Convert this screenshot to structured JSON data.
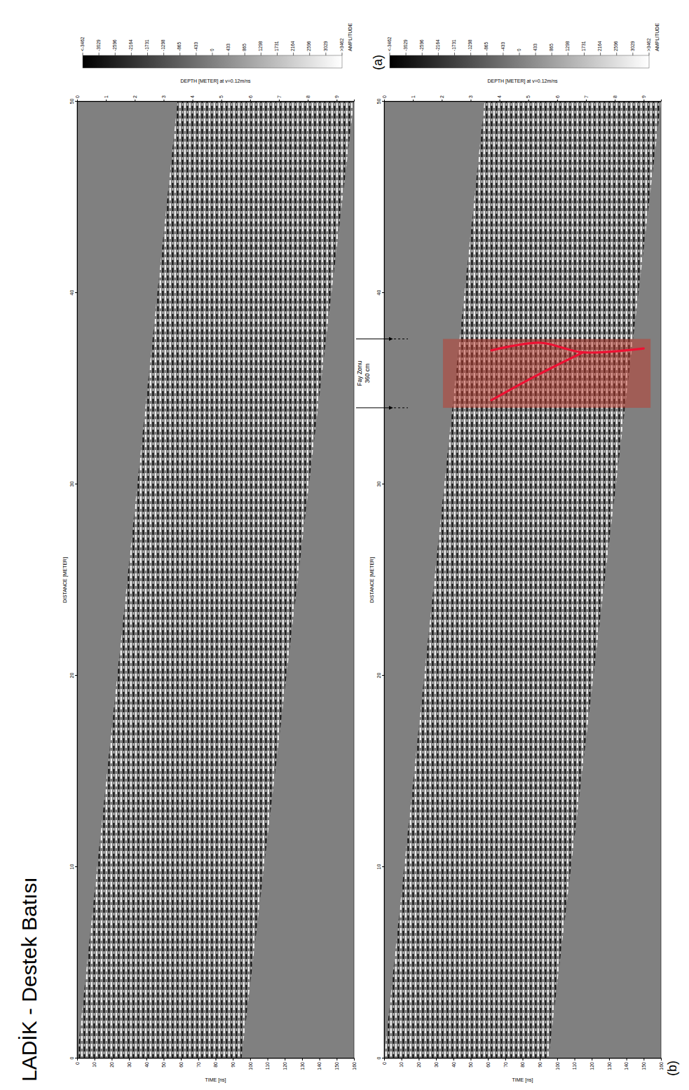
{
  "title": "LADİK - Destek Batısı",
  "chart_data": [
    {
      "type": "heatmap",
      "panel": "(a)",
      "xlabel": "DISTANCE [METER]",
      "ylabel": "TIME [ns]",
      "y2label": "DEPTH [METER] at v=0.12m/ns",
      "xlim": [
        0,
        50
      ],
      "xticks": [
        0,
        10,
        20,
        30,
        40,
        50
      ],
      "ylim": [
        0,
        160
      ],
      "yticks": [
        0,
        10,
        20,
        30,
        40,
        50,
        60,
        70,
        80,
        90,
        100,
        110,
        120,
        130,
        140,
        150,
        160
      ],
      "y2lim": [
        0,
        9.6
      ],
      "y2ticks": [
        0,
        1,
        2,
        3,
        4,
        5,
        6,
        7,
        8,
        9
      ],
      "signal_window": {
        "distance": [
          0,
          50
        ],
        "start": [
          0,
          58
        ],
        "end": [
          95,
          160
        ]
      },
      "colorbar": {
        "title": "AMPLITUDE",
        "range": [
          -3462,
          3462
        ],
        "ticks": [
          {
            "value": -3462,
            "label": "<-3462"
          },
          -3029,
          -2596,
          -2164,
          -1731,
          -1298,
          -865,
          -433,
          0,
          433,
          865,
          1298,
          1731,
          2164,
          2596,
          3029,
          {
            "value": 3462,
            "label": ">3462"
          }
        ]
      }
    },
    {
      "type": "heatmap",
      "panel": "(b)",
      "xlabel": "DISTANCE [METER]",
      "ylabel": "TIME [ns]",
      "y2label": "DEPTH [METER] at v=0.12m/ns",
      "xlim": [
        0,
        50
      ],
      "xticks": [
        0,
        10,
        20,
        30,
        40,
        50
      ],
      "ylim": [
        0,
        160
      ],
      "yticks": [
        0,
        10,
        20,
        30,
        40,
        50,
        60,
        70,
        80,
        90,
        100,
        110,
        120,
        130,
        140,
        150,
        160
      ],
      "y2lim": [
        0,
        9.6
      ],
      "y2ticks": [
        0,
        1,
        2,
        3,
        4,
        5,
        6,
        7,
        8,
        9
      ],
      "signal_window": {
        "distance": [
          0,
          50
        ],
        "start": [
          0,
          58
        ],
        "end": [
          95,
          160
        ]
      },
      "colorbar": {
        "title": "AMPLITUDE",
        "range": [
          -3462,
          3462
        ],
        "ticks": [
          {
            "value": -3462,
            "label": "<-3462"
          },
          -3029,
          -2596,
          -2164,
          -1731,
          -1298,
          -865,
          -433,
          0,
          433,
          865,
          1298,
          1731,
          2164,
          2596,
          3029,
          {
            "value": 3462,
            "label": ">3462"
          }
        ]
      },
      "fault_zone": {
        "label": "Fay Zonu",
        "width_label": "360 cm",
        "distance": [
          34,
          37.6
        ],
        "time": [
          34,
          154
        ]
      },
      "fault_lines": [
        {
          "distance": [
            37.0,
            37.4,
            36.9,
            37.1
          ],
          "time": [
            62,
            90,
            115,
            150
          ]
        },
        {
          "distance": [
            34.4,
            35.3,
            36.1,
            36.9
          ],
          "time": [
            62,
            80,
            97,
            115
          ]
        }
      ]
    }
  ]
}
